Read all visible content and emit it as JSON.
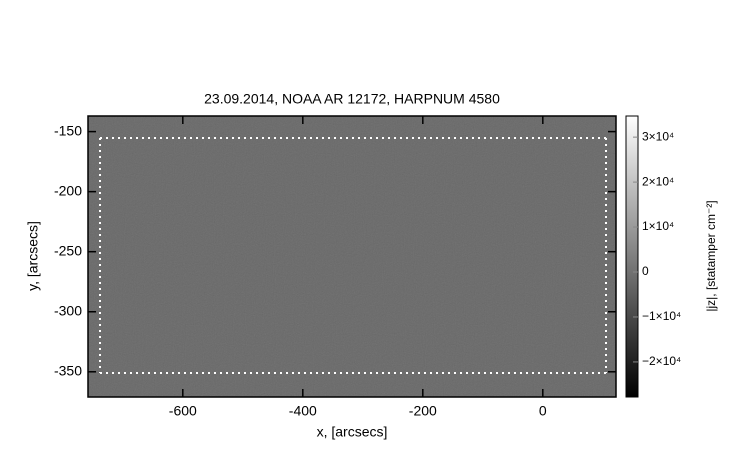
{
  "chart_data": {
    "type": "image",
    "title": "23.09.2014, NOAA AR 12172, HARPNUM 4580",
    "xlabel": "x, [arcsecs]",
    "ylabel": "y, [arcsecs]",
    "xlim": [
      -758,
      122
    ],
    "ylim": [
      -371,
      -137
    ],
    "xticks": [
      -600,
      -400,
      -200,
      0
    ],
    "yticks": [
      -150,
      -200,
      -250,
      -300,
      -350
    ],
    "colorbar": {
      "label": "|jz|, [statamper cm⁻²]",
      "clim": [
        -27800,
        34700
      ],
      "colors": [
        "#000000",
        "#ffffff"
      ],
      "ticks": [
        {
          "value": 30000,
          "label": "3×10⁴"
        },
        {
          "value": 20000,
          "label": "2×10⁴"
        },
        {
          "value": 10000,
          "label": "1×10⁴"
        },
        0,
        {
          "value": -10000,
          "label": "−1×10⁴"
        },
        {
          "value": -20000,
          "label": "−2×10⁴"
        }
      ]
    }
  }
}
